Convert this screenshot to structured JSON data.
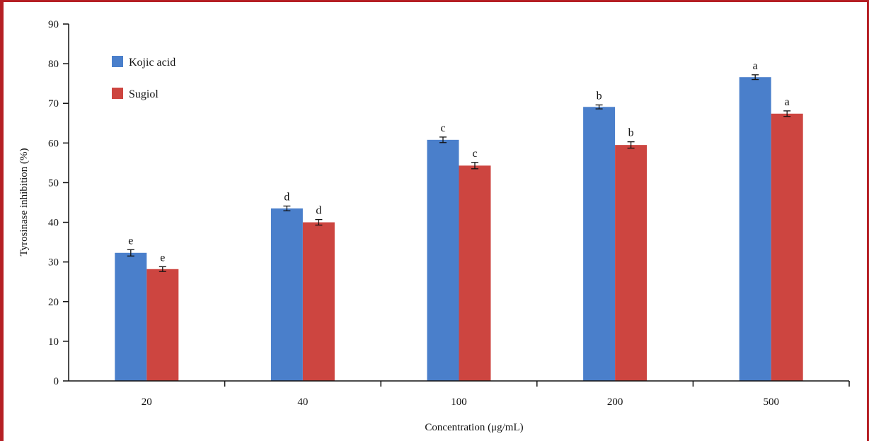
{
  "chart_data": {
    "type": "bar",
    "title": "",
    "xlabel": "Concentration (μg/mL)",
    "ylabel": "Tyrosinase inhibition (%)",
    "ylim": [
      0,
      90
    ],
    "yticks": [
      "0",
      "10",
      "20",
      "30",
      "40",
      "50",
      "60",
      "70",
      "80",
      "90"
    ],
    "categories": [
      "20",
      "40",
      "100",
      "200",
      "500"
    ],
    "legend_position": "top-left",
    "grid": false,
    "series": [
      {
        "name": "Kojic acid",
        "color": "#4a7fcb",
        "values": [
          32.3,
          43.5,
          60.8,
          69.1,
          76.6
        ],
        "errors": [
          0.8,
          0.6,
          0.7,
          0.5,
          0.6
        ],
        "labels": [
          "e",
          "d",
          "c",
          "b",
          "a"
        ]
      },
      {
        "name": "Sugiol",
        "color": "#cd4540",
        "values": [
          28.2,
          40.0,
          54.3,
          59.5,
          67.4
        ],
        "errors": [
          0.6,
          0.7,
          0.8,
          0.8,
          0.7
        ],
        "labels": [
          "e",
          "d",
          "c",
          "b",
          "a"
        ]
      }
    ]
  }
}
